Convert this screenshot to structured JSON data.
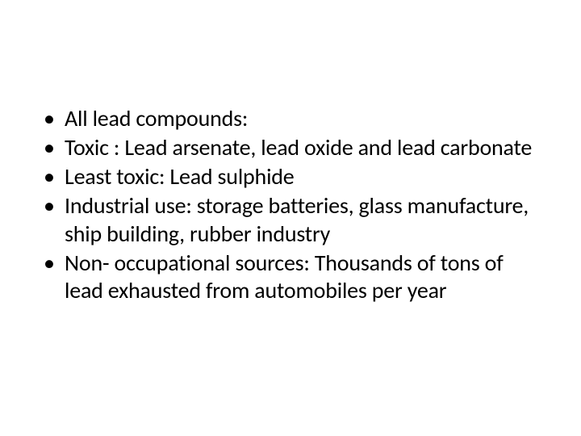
{
  "slide": {
    "background_color": "#ffffff",
    "text_color": "#000000",
    "font_family": "Calibri",
    "bullet_fontsize": 28,
    "bullets": [
      "All lead compounds:",
      "Toxic : Lead arsenate, lead oxide and lead carbonate",
      "Least toxic: Lead sulphide",
      "Industrial use: storage batteries, glass manufacture, ship building, rubber industry",
      "Non- occupational sources: Thousands of tons of lead exhausted from automobiles per year"
    ]
  }
}
